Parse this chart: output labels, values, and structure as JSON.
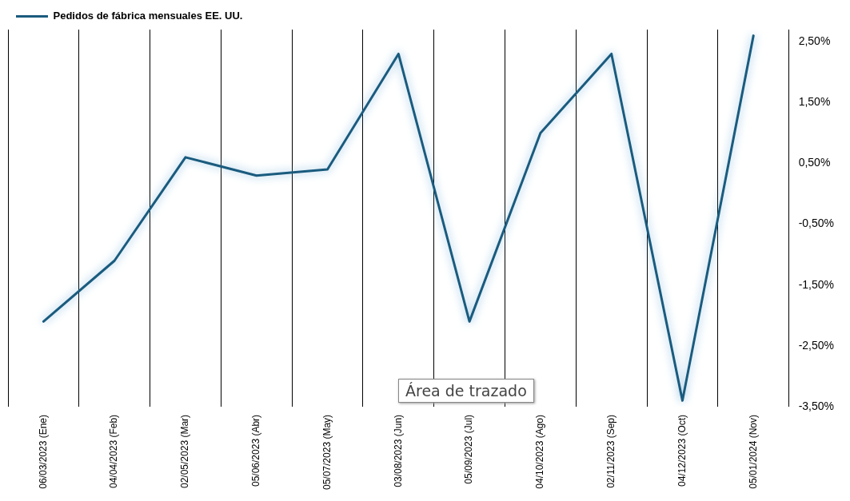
{
  "chart_data": {
    "type": "line",
    "categories": [
      "06/03/2023 (Ene)",
      "04/04/2023 (Feb)",
      "02/05/2023 (Mar)",
      "05/06/2023 (Abr)",
      "05/07/2023 (May)",
      "03/08/2023 (Jun)",
      "05/09/2023 (Jul)",
      "04/10/2023 (Ago)",
      "02/11/2023 (Sep)",
      "04/12/2023 (Oct)",
      "05/01/2024 (Nov)"
    ],
    "series": [
      {
        "name": "Pedidos de fábrica mensuales EE. UU.",
        "color": "#1a5b7e",
        "values": [
          -2.1,
          -1.1,
          0.6,
          0.3,
          0.4,
          2.3,
          -2.1,
          1.0,
          2.3,
          -3.4,
          2.6
        ]
      }
    ],
    "ylim": [
      -3.5,
      2.7
    ],
    "yticks": [
      {
        "value": -3.5,
        "label": "-3,50%"
      },
      {
        "value": -2.5,
        "label": "-2,50%"
      },
      {
        "value": -1.5,
        "label": "-1,50%"
      },
      {
        "value": -0.5,
        "label": "-0,50%"
      },
      {
        "value": 0.5,
        "label": "0,50%"
      },
      {
        "value": 1.5,
        "label": "1,50%"
      },
      {
        "value": 2.5,
        "label": "2,50%"
      }
    ],
    "grid": "x",
    "legend": "top left",
    "marker": "none",
    "line_style": "solid",
    "annotations": [
      "Área de trazado"
    ]
  }
}
